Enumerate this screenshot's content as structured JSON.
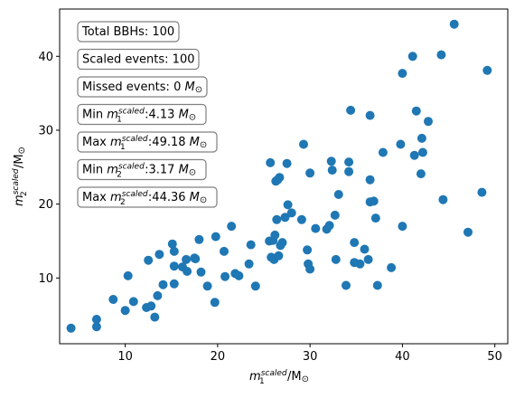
{
  "chart_data": {
    "type": "scatter",
    "xlabel_main": "m",
    "xlabel_sub": "1",
    "xlabel_sup": "scaled",
    "xlabel_tail": "/M",
    "xlabel_sun": "⊙",
    "ylabel_main": "m",
    "ylabel_sub": "2",
    "ylabel_sup": "scaled",
    "ylabel_tail": "/M",
    "ylabel_sun": "⊙",
    "xlim": [
      2.9,
      51.4
    ],
    "ylim": [
      1.1,
      46.4
    ],
    "xticks": [
      10,
      20,
      30,
      40,
      50
    ],
    "yticks": [
      10,
      20,
      30,
      40
    ],
    "grid": false,
    "color": "#1f77b4",
    "annotations": [
      {
        "text": "Total BBHs: 100"
      },
      {
        "text": "Scaled events: 100"
      },
      {
        "text": "Missed events: 0 ",
        "unit": "M",
        "sun": "⊙"
      },
      {
        "pre": "Min ",
        "var": "m",
        "sup": "scaled",
        "sub": "1",
        "val": ":4.13 ",
        "unit": "M",
        "sun": "⊙"
      },
      {
        "pre": "Max ",
        "var": "m",
        "sup": "scaled",
        "sub": "1",
        "val": ":49.18 ",
        "unit": "M",
        "sun": "⊙"
      },
      {
        "pre": "Min ",
        "var": "m",
        "sup": "scaled",
        "sub": "2",
        "val": ":3.17 ",
        "unit": "M",
        "sun": "⊙"
      },
      {
        "pre": "Max ",
        "var": "m",
        "sup": "scaled",
        "sub": "2",
        "val": ":44.36 ",
        "unit": "M",
        "sun": "⊙"
      }
    ],
    "points": [
      [
        4.13,
        3.2
      ],
      [
        6.9,
        3.4
      ],
      [
        6.9,
        4.4
      ],
      [
        8.7,
        7.1
      ],
      [
        10.0,
        5.6
      ],
      [
        10.3,
        10.3
      ],
      [
        10.9,
        6.8
      ],
      [
        12.3,
        6.0
      ],
      [
        12.5,
        12.4
      ],
      [
        12.8,
        6.2
      ],
      [
        13.2,
        4.7
      ],
      [
        13.5,
        7.6
      ],
      [
        13.7,
        13.2
      ],
      [
        14.1,
        9.1
      ],
      [
        15.1,
        14.6
      ],
      [
        15.3,
        13.6
      ],
      [
        15.3,
        11.6
      ],
      [
        15.3,
        9.2
      ],
      [
        16.2,
        11.5
      ],
      [
        16.6,
        12.5
      ],
      [
        16.7,
        10.9
      ],
      [
        17.5,
        12.7
      ],
      [
        17.6,
        12.6
      ],
      [
        18.0,
        15.2
      ],
      [
        18.2,
        10.8
      ],
      [
        18.9,
        8.9
      ],
      [
        19.7,
        6.7
      ],
      [
        19.8,
        15.6
      ],
      [
        20.7,
        13.6
      ],
      [
        20.8,
        10.2
      ],
      [
        21.5,
        17.0
      ],
      [
        21.9,
        10.6
      ],
      [
        22.3,
        10.3
      ],
      [
        23.4,
        11.9
      ],
      [
        23.6,
        14.5
      ],
      [
        24.1,
        8.9
      ],
      [
        25.6,
        15.0
      ],
      [
        25.7,
        25.6
      ],
      [
        25.8,
        12.8
      ],
      [
        26.0,
        15.1
      ],
      [
        26.1,
        12.5
      ],
      [
        26.2,
        15.8
      ],
      [
        26.3,
        23.1
      ],
      [
        26.4,
        17.9
      ],
      [
        26.5,
        23.3
      ],
      [
        26.6,
        13.0
      ],
      [
        26.7,
        23.6
      ],
      [
        26.8,
        14.4
      ],
      [
        27.0,
        14.8
      ],
      [
        27.3,
        18.2
      ],
      [
        27.5,
        25.5
      ],
      [
        27.6,
        19.9
      ],
      [
        28.0,
        18.8
      ],
      [
        29.1,
        17.9
      ],
      [
        29.3,
        28.1
      ],
      [
        29.7,
        13.8
      ],
      [
        29.8,
        11.9
      ],
      [
        30.0,
        11.2
      ],
      [
        30.0,
        24.2
      ],
      [
        30.6,
        16.7
      ],
      [
        31.8,
        16.6
      ],
      [
        32.1,
        17.1
      ],
      [
        32.3,
        25.8
      ],
      [
        32.4,
        24.6
      ],
      [
        32.7,
        18.5
      ],
      [
        32.8,
        12.5
      ],
      [
        33.1,
        21.3
      ],
      [
        33.9,
        9.0
      ],
      [
        34.2,
        25.7
      ],
      [
        34.2,
        24.4
      ],
      [
        34.4,
        32.7
      ],
      [
        34.8,
        14.8
      ],
      [
        34.8,
        12.1
      ],
      [
        35.4,
        11.9
      ],
      [
        35.9,
        13.9
      ],
      [
        36.3,
        12.5
      ],
      [
        36.5,
        32.0
      ],
      [
        36.5,
        23.3
      ],
      [
        36.5,
        20.3
      ],
      [
        36.9,
        20.4
      ],
      [
        37.1,
        18.1
      ],
      [
        37.3,
        9.0
      ],
      [
        37.9,
        27.0
      ],
      [
        38.8,
        11.4
      ],
      [
        39.8,
        28.1
      ],
      [
        40.0,
        17.0
      ],
      [
        40.0,
        37.7
      ],
      [
        41.1,
        40.0
      ],
      [
        41.3,
        26.6
      ],
      [
        41.5,
        32.6
      ],
      [
        42.0,
        24.1
      ],
      [
        42.1,
        28.9
      ],
      [
        42.2,
        27.0
      ],
      [
        42.8,
        31.2
      ],
      [
        44.2,
        40.2
      ],
      [
        44.4,
        20.6
      ],
      [
        45.6,
        44.36
      ],
      [
        47.1,
        16.2
      ],
      [
        48.6,
        21.6
      ],
      [
        49.18,
        38.1
      ]
    ]
  }
}
